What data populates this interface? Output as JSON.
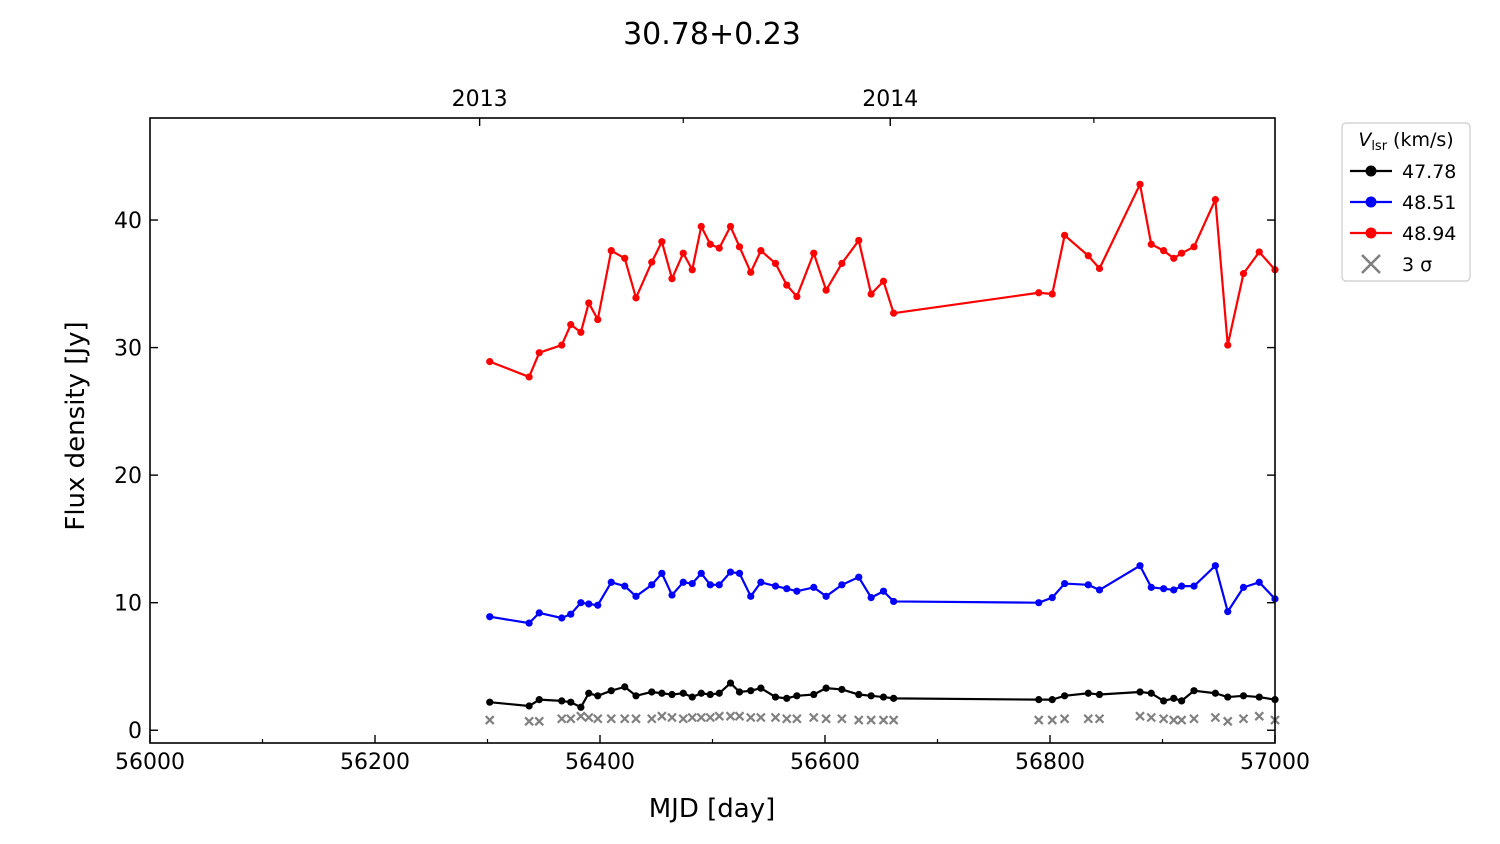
{
  "chart_data": {
    "type": "line",
    "title": "30.78+0.23",
    "xlabel": "MJD [day]",
    "ylabel": "Flux density [Jy]",
    "xlim": [
      56000,
      57000
    ],
    "ylim": [
      -1,
      48
    ],
    "xticks": [
      56000,
      56200,
      56400,
      56600,
      56800,
      57000
    ],
    "xticks_minor": [
      56100,
      56300,
      56500,
      56700,
      56900
    ],
    "yticks": [
      0,
      10,
      20,
      30,
      40
    ],
    "top_axis": {
      "labels": [
        "2013",
        "2014"
      ],
      "positions": [
        56293,
        56658
      ],
      "minor_positions": [
        56474,
        56839
      ]
    },
    "grid": false,
    "legend": {
      "position": "outside-top-right",
      "title_symbol": "V",
      "title_subscript": "lsr",
      "title_units": "(km/s)",
      "sigma_label": "3 σ"
    },
    "series": [
      {
        "name": "47.78",
        "color": "#000000",
        "x": [
          56302,
          56337,
          56346,
          56366,
          56374,
          56383,
          56390,
          56398,
          56410,
          56422,
          56432,
          56446,
          56455,
          56464,
          56474,
          56482,
          56490,
          56498,
          56506,
          56516,
          56524,
          56534,
          56543,
          56556,
          56566,
          56575,
          56590,
          56601,
          56615,
          56630,
          56641,
          56652,
          56661,
          56790,
          56802,
          56813,
          56834,
          56844,
          56880,
          56890,
          56901,
          56910,
          56917,
          56928,
          56947,
          56958,
          56972,
          56986,
          57000
        ],
        "y": [
          2.2,
          1.9,
          2.4,
          2.3,
          2.2,
          1.8,
          2.9,
          2.7,
          3.1,
          3.4,
          2.7,
          3.0,
          2.9,
          2.8,
          2.9,
          2.6,
          2.9,
          2.8,
          2.9,
          3.7,
          3.0,
          3.1,
          3.3,
          2.6,
          2.5,
          2.7,
          2.8,
          3.3,
          3.2,
          2.8,
          2.7,
          2.6,
          2.5,
          2.4,
          2.4,
          2.7,
          2.9,
          2.8,
          3.0,
          2.9,
          2.3,
          2.5,
          2.3,
          3.1,
          2.9,
          2.6,
          2.7,
          2.6,
          2.4
        ]
      },
      {
        "name": "48.51",
        "color": "#0000ff",
        "x": [
          56302,
          56337,
          56346,
          56366,
          56374,
          56383,
          56390,
          56398,
          56410,
          56422,
          56432,
          56446,
          56455,
          56464,
          56474,
          56482,
          56490,
          56498,
          56506,
          56516,
          56524,
          56534,
          56543,
          56556,
          56566,
          56575,
          56590,
          56601,
          56615,
          56630,
          56641,
          56652,
          56661,
          56790,
          56802,
          56813,
          56834,
          56844,
          56880,
          56890,
          56901,
          56910,
          56917,
          56928,
          56947,
          56958,
          56972,
          56986,
          57000
        ],
        "y": [
          8.9,
          8.4,
          9.2,
          8.8,
          9.1,
          10.0,
          9.9,
          9.8,
          11.6,
          11.3,
          10.5,
          11.4,
          12.3,
          10.6,
          11.6,
          11.5,
          12.3,
          11.4,
          11.4,
          12.4,
          12.3,
          10.5,
          11.6,
          11.3,
          11.1,
          10.9,
          11.2,
          10.5,
          11.4,
          12.0,
          10.4,
          10.9,
          10.1,
          10.0,
          10.4,
          11.5,
          11.4,
          11.0,
          12.9,
          11.2,
          11.1,
          11.0,
          11.3,
          11.3,
          12.9,
          9.3,
          11.2,
          11.6,
          10.3
        ]
      },
      {
        "name": "48.94",
        "color": "#ff0000",
        "x": [
          56302,
          56337,
          56346,
          56366,
          56374,
          56383,
          56390,
          56398,
          56410,
          56422,
          56432,
          56446,
          56455,
          56464,
          56474,
          56482,
          56490,
          56498,
          56506,
          56516,
          56524,
          56534,
          56543,
          56556,
          56566,
          56575,
          56590,
          56601,
          56615,
          56630,
          56641,
          56652,
          56661,
          56790,
          56802,
          56813,
          56834,
          56844,
          56880,
          56890,
          56901,
          56910,
          56917,
          56928,
          56947,
          56958,
          56972,
          56986,
          57000
        ],
        "y": [
          28.9,
          27.7,
          29.6,
          30.2,
          31.8,
          31.2,
          33.5,
          32.2,
          37.6,
          37.0,
          33.9,
          36.7,
          38.3,
          35.4,
          37.4,
          36.1,
          39.5,
          38.1,
          37.8,
          39.5,
          37.9,
          35.9,
          37.6,
          36.6,
          34.9,
          34.0,
          37.4,
          34.5,
          36.6,
          38.4,
          34.2,
          35.2,
          32.7,
          34.3,
          34.2,
          38.8,
          37.2,
          36.2,
          42.8,
          38.1,
          37.6,
          37.0,
          37.4,
          37.9,
          41.6,
          30.2,
          35.8,
          37.5,
          36.1
        ]
      }
    ],
    "sigma_series": {
      "name": "3 σ",
      "color": "#808080",
      "x": [
        56302,
        56337,
        56346,
        56366,
        56374,
        56383,
        56390,
        56398,
        56410,
        56422,
        56432,
        56446,
        56455,
        56464,
        56474,
        56482,
        56490,
        56498,
        56506,
        56516,
        56524,
        56534,
        56543,
        56556,
        56566,
        56575,
        56590,
        56601,
        56615,
        56630,
        56641,
        56652,
        56661,
        56790,
        56802,
        56813,
        56834,
        56844,
        56880,
        56890,
        56901,
        56910,
        56917,
        56928,
        56947,
        56958,
        56972,
        56986,
        57000
      ],
      "y": [
        0.8,
        0.7,
        0.7,
        0.9,
        0.9,
        1.1,
        1.0,
        0.9,
        0.9,
        0.9,
        0.9,
        0.9,
        1.1,
        1.0,
        0.9,
        1.0,
        1.0,
        1.0,
        1.1,
        1.1,
        1.1,
        1.0,
        1.0,
        1.0,
        0.9,
        0.9,
        1.0,
        0.9,
        0.9,
        0.8,
        0.8,
        0.8,
        0.8,
        0.8,
        0.8,
        0.9,
        0.9,
        0.9,
        1.1,
        1.0,
        0.9,
        0.8,
        0.8,
        0.9,
        1.0,
        0.7,
        0.9,
        1.1,
        0.8
      ]
    }
  }
}
